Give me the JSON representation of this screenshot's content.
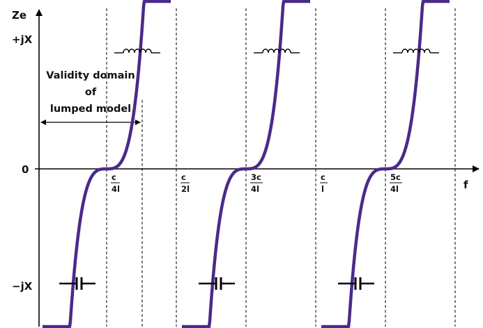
{
  "axes": {
    "y_label": "Ze",
    "y_top_label": "+jX",
    "y_bottom_label": "−jX",
    "zero_label": "0",
    "x_label": "f"
  },
  "ticks": [
    {
      "num": "c",
      "den": "4l"
    },
    {
      "num": "c",
      "den": "2l"
    },
    {
      "num": "3c",
      "den": "4l"
    },
    {
      "num": "c",
      "den": "l"
    },
    {
      "num": "5c",
      "den": "4l"
    }
  ],
  "validity": {
    "line1": "Validity domain",
    "line2": "of",
    "line3": "lumped model"
  },
  "symbols": {
    "inductor": "inductor-icon",
    "capacitor": "capacitor-icon"
  },
  "colors": {
    "curve": "#4a2a8a",
    "axes": "#000000"
  }
}
